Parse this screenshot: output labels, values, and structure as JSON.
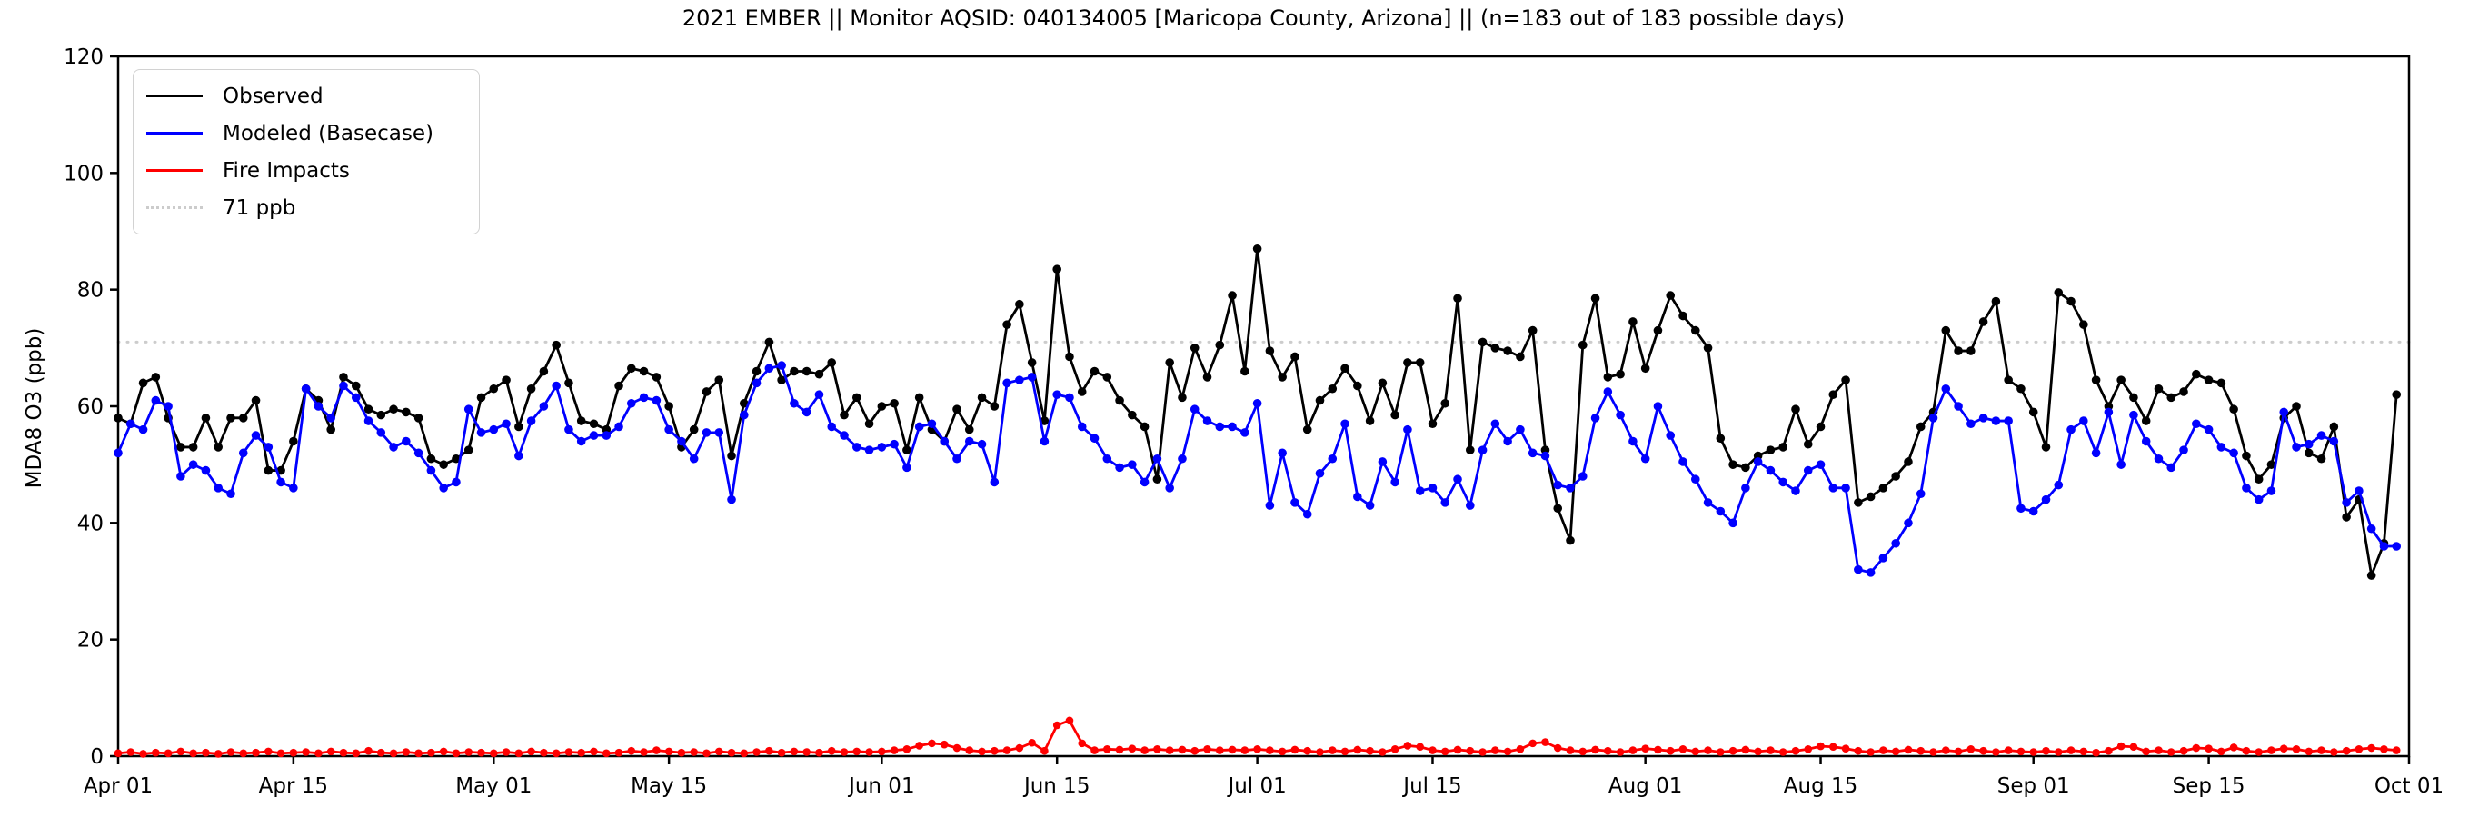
{
  "chart_data": {
    "type": "line",
    "title": "2021 EMBER || Monitor AQSID: 040134005 [Maricopa County, Arizona] || (n=183 out of 183 possible days)",
    "xlabel": "",
    "ylabel": "MDA8 O3 (ppb)",
    "ylim": [
      0,
      120
    ],
    "yticks": [
      0,
      20,
      40,
      60,
      80,
      100,
      120
    ],
    "grid": "off",
    "n_days": 183,
    "x_start": "Apr 01",
    "x_end": "Oct 01",
    "xtick_labels": [
      "Apr 01",
      "Apr 15",
      "May 01",
      "May 15",
      "Jun 01",
      "Jun 15",
      "Jul 01",
      "Jul 15",
      "Aug 01",
      "Aug 15",
      "Sep 01",
      "Sep 15",
      "Oct 01"
    ],
    "xtick_day_index": [
      0,
      14,
      30,
      44,
      61,
      75,
      91,
      105,
      122,
      136,
      153,
      167,
      183
    ],
    "threshold": {
      "value": 71,
      "label": "71 ppb",
      "color": "#cccccc",
      "style": "dotted"
    },
    "legend": {
      "position": "upper-left",
      "entries": [
        {
          "label": "Observed",
          "color": "#000000",
          "dotted": false
        },
        {
          "label": "Modeled (Basecase)",
          "color": "#0000ff",
          "dotted": false
        },
        {
          "label": "Fire Impacts",
          "color": "#ff0000",
          "dotted": false
        },
        {
          "label": "71 ppb",
          "color": "#cccccc",
          "dotted": true
        }
      ]
    },
    "series": [
      {
        "name": "Observed",
        "color": "#000000",
        "values": [
          58,
          57,
          64,
          65,
          58,
          53,
          53,
          58,
          53,
          58,
          58,
          61,
          49,
          49,
          54,
          63,
          61,
          56,
          65,
          63.5,
          59.5,
          58.5,
          59.5,
          59,
          58,
          51,
          50,
          51,
          52.5,
          61.5,
          63,
          64.5,
          56.5,
          63,
          66,
          70.5,
          64,
          57.5,
          57,
          56,
          63.5,
          66.5,
          66,
          65,
          60,
          53,
          56,
          62.5,
          64.5,
          51.5,
          60.5,
          66,
          71,
          64.5,
          66,
          66,
          65.5,
          67.5,
          58.5,
          61.5,
          57,
          60,
          60.5,
          52.5,
          61.5,
          56,
          54,
          59.5,
          56,
          61.5,
          60,
          74,
          77.5,
          67.5,
          57.5,
          83.5,
          68.5,
          62.5,
          66,
          65,
          61,
          58.5,
          56.5,
          47.5,
          67.5,
          61.5,
          70,
          65,
          70.5,
          79,
          66,
          87,
          69.5,
          65,
          68.5,
          56,
          61,
          63,
          66.5,
          63.5,
          57.5,
          64,
          58.5,
          67.5,
          67.5,
          57,
          60.5,
          78.5,
          52.5,
          71,
          70,
          69.5,
          68.5,
          73,
          52.5,
          42.5,
          37,
          70.5,
          78.5,
          65,
          65.5,
          74.5,
          66.5,
          73,
          79,
          75.5,
          73,
          70,
          54.5,
          50,
          49.5,
          51.5,
          52.5,
          53,
          59.5,
          53.5,
          56.5,
          62,
          64.5,
          43.5,
          44.5,
          46,
          48,
          50.5,
          56.5,
          59,
          73,
          69.5,
          69.5,
          74.5,
          78,
          64.5,
          63,
          59,
          53,
          79.5,
          78,
          74,
          64.5,
          60,
          64.5,
          61.5,
          57.5,
          63,
          61.5,
          62.5,
          65.5,
          64.5,
          64,
          59.5,
          51.5,
          47.5,
          50,
          58,
          60,
          52,
          51,
          56.5,
          41,
          44,
          31,
          36.5,
          62
        ]
      },
      {
        "name": "Modeled (Basecase)",
        "color": "#0000ff",
        "values": [
          52,
          57,
          56,
          61,
          60,
          48,
          50,
          49,
          46,
          45,
          52,
          55,
          53,
          47,
          46,
          63,
          60,
          58,
          63.5,
          61.5,
          57.5,
          55.5,
          53,
          54,
          52,
          49,
          46,
          47,
          59.5,
          55.5,
          56,
          57,
          51.5,
          57.5,
          60,
          63.5,
          56,
          54,
          55,
          55,
          56.5,
          60.5,
          61.5,
          61,
          56,
          54,
          51,
          55.5,
          55.5,
          44,
          58.5,
          64,
          66.5,
          67,
          60.5,
          59,
          62,
          56.5,
          55,
          53,
          52.5,
          53,
          53.5,
          49.5,
          56.5,
          57,
          54,
          51,
          54,
          53.5,
          47,
          64,
          64.5,
          65,
          54,
          62,
          61.5,
          56.5,
          54.5,
          51,
          49.5,
          50,
          47,
          51,
          46,
          51,
          59.5,
          57.5,
          56.5,
          56.5,
          55.5,
          60.5,
          43,
          52,
          43.5,
          41.5,
          48.5,
          51,
          57,
          44.5,
          43,
          50.5,
          47,
          56,
          45.5,
          46,
          43.5,
          47.5,
          43,
          52.5,
          57,
          54,
          56,
          52,
          51.5,
          46.5,
          46,
          48,
          58,
          62.5,
          58.5,
          54,
          51,
          60,
          55,
          50.5,
          47.5,
          43.5,
          42,
          40,
          46,
          50.5,
          49,
          47,
          45.5,
          49,
          50,
          46,
          46,
          32,
          31.5,
          34,
          36.5,
          40,
          45,
          58,
          63,
          60,
          57,
          58,
          57.5,
          57.5,
          42.5,
          42,
          44,
          46.5,
          56,
          57.5,
          52,
          59,
          50,
          58.5,
          54,
          51,
          49.5,
          52.5,
          57,
          56,
          53,
          52,
          46,
          44,
          45.5,
          59,
          53,
          53.5,
          55,
          54,
          43.5,
          45.5,
          39,
          36,
          36
        ]
      },
      {
        "name": "Fire Impacts",
        "color": "#ff0000",
        "values": [
          0.5,
          0.7,
          0.4,
          0.6,
          0.5,
          0.8,
          0.5,
          0.6,
          0.4,
          0.7,
          0.5,
          0.6,
          0.8,
          0.5,
          0.6,
          0.7,
          0.5,
          0.8,
          0.6,
          0.5,
          0.9,
          0.6,
          0.5,
          0.7,
          0.5,
          0.6,
          0.8,
          0.5,
          0.7,
          0.6,
          0.5,
          0.7,
          0.5,
          0.8,
          0.6,
          0.5,
          0.7,
          0.6,
          0.8,
          0.5,
          0.6,
          0.9,
          0.7,
          1.0,
          0.8,
          0.6,
          0.7,
          0.5,
          0.8,
          0.6,
          0.5,
          0.7,
          0.9,
          0.6,
          0.8,
          0.7,
          0.6,
          0.9,
          0.7,
          0.8,
          0.7,
          0.8,
          1.0,
          1.2,
          1.8,
          2.2,
          2.0,
          1.4,
          1.0,
          0.8,
          0.9,
          1.0,
          1.4,
          2.3,
          0.9,
          5.3,
          6.1,
          2.2,
          1.0,
          1.2,
          1.1,
          1.3,
          1.0,
          1.2,
          1.0,
          1.1,
          0.9,
          1.2,
          1.0,
          1.1,
          1.0,
          1.2,
          1.0,
          0.8,
          1.1,
          0.9,
          0.7,
          1.0,
          0.8,
          1.1,
          0.9,
          0.7,
          1.2,
          1.8,
          1.6,
          1.0,
          0.8,
          1.1,
          0.9,
          0.7,
          1.0,
          0.8,
          1.2,
          2.2,
          2.4,
          1.4,
          1.0,
          0.8,
          1.1,
          0.9,
          0.7,
          1.0,
          1.3,
          1.1,
          0.9,
          1.2,
          0.8,
          1.0,
          0.7,
          0.9,
          1.1,
          0.8,
          1.0,
          0.7,
          0.9,
          1.2,
          1.7,
          1.6,
          1.3,
          0.9,
          0.7,
          1.0,
          0.8,
          1.1,
          0.9,
          0.7,
          1.0,
          0.8,
          1.2,
          0.9,
          0.7,
          1.0,
          0.8,
          0.7,
          0.9,
          0.7,
          1.0,
          0.8,
          0.6,
          0.9,
          1.7,
          1.6,
          0.8,
          1.0,
          0.7,
          0.9,
          1.4,
          1.3,
          0.8,
          1.5,
          0.9,
          0.7,
          1.0,
          1.3,
          1.2,
          0.8,
          1.0,
          0.7,
          0.9,
          1.2,
          1.4,
          1.2,
          1.0
        ]
      }
    ]
  }
}
